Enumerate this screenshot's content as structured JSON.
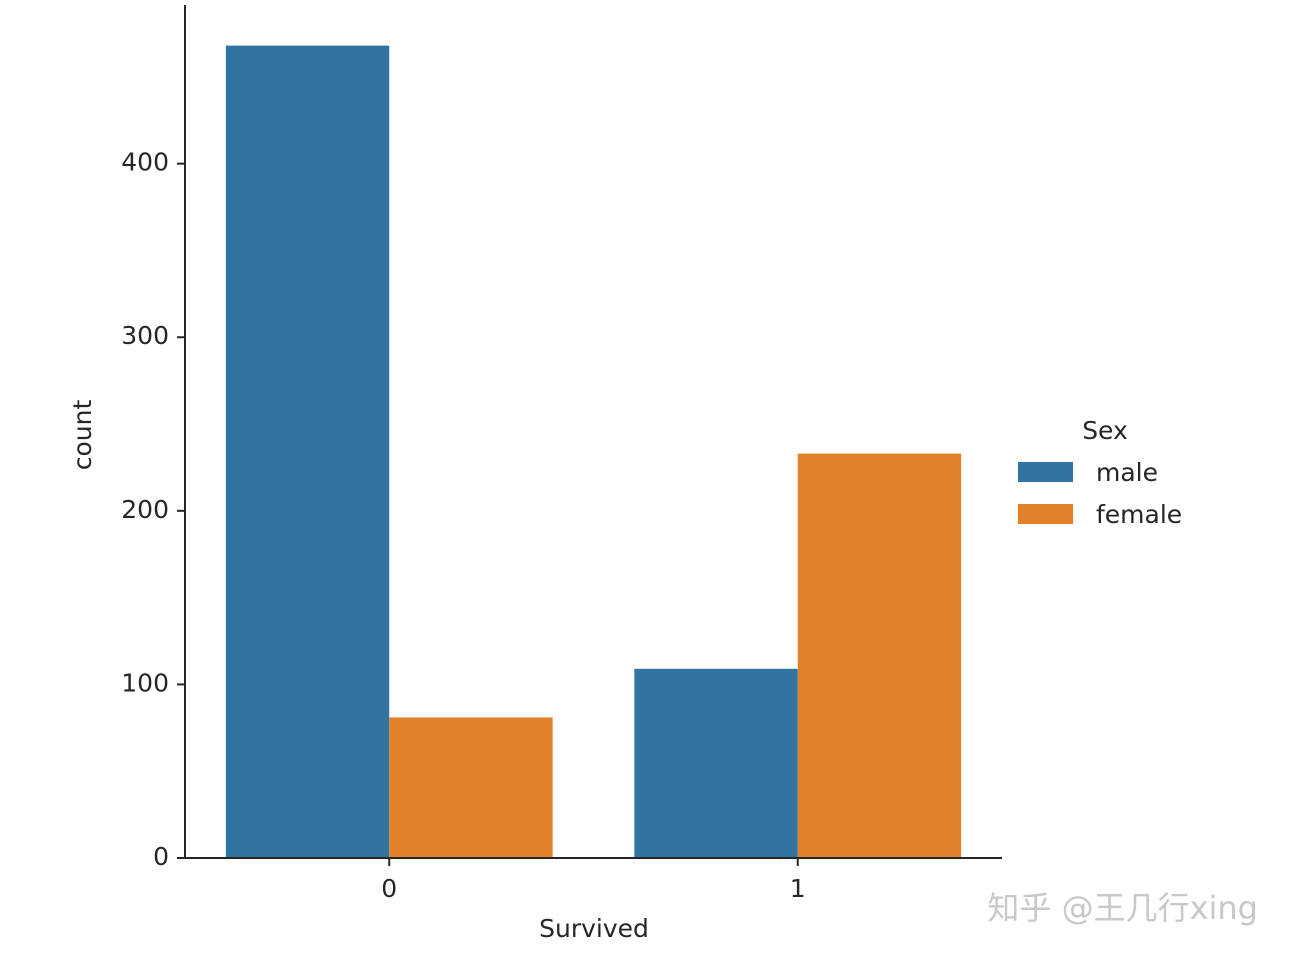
{
  "chart_data": {
    "type": "bar",
    "x_label": "Survived",
    "y_label": "count",
    "categories": [
      "0",
      "1"
    ],
    "series": [
      {
        "name": "male",
        "color": "#3274a1",
        "values": [
          468,
          109
        ]
      },
      {
        "name": "female",
        "color": "#e1812c",
        "values": [
          81,
          233
        ]
      }
    ],
    "ylim": [
      0,
      491.4
    ],
    "yticks": [
      0,
      100,
      200,
      300,
      400
    ],
    "legend_title": "Sex",
    "legend": "right",
    "watermark": "知乎 @王几行xing"
  }
}
